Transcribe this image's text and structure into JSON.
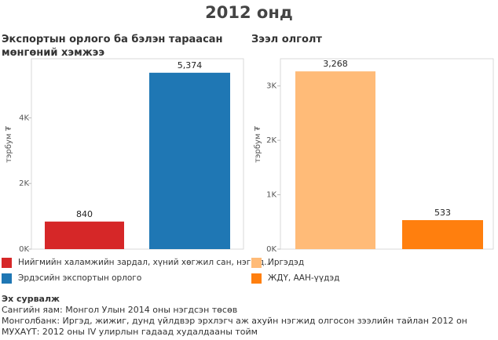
{
  "title": "2012 онд",
  "chart_data": [
    {
      "type": "bar",
      "title": "Экспортын орлого ба бэлэн тараасан мөнгөний хэмжээ",
      "ylabel": "тэрбум ₮",
      "ylim": [
        0,
        5800
      ],
      "yticks": [
        0,
        2000,
        4000
      ],
      "ytick_labels": [
        "0K",
        "2K",
        "4K"
      ],
      "categories": [
        "Нийгмийн халамжийн зардал, хүний хөгжил сан, нэг уд..",
        "Эрдэсийн экспортын орлого"
      ],
      "values": [
        840,
        5374
      ],
      "value_labels": [
        "840",
        "5,374"
      ],
      "colors": [
        "#d62728",
        "#1f77b4"
      ]
    },
    {
      "type": "bar",
      "title": "Зээл олголт",
      "ylabel": "тэрбум ₮",
      "ylim": [
        0,
        3500
      ],
      "yticks": [
        0,
        1000,
        2000,
        3000
      ],
      "ytick_labels": [
        "0K",
        "1K",
        "2K",
        "3K"
      ],
      "categories": [
        "Иргэдэд",
        "ЖДҮ, ААН-үүдэд"
      ],
      "values": [
        3268,
        533
      ],
      "value_labels": [
        "3,268",
        "533"
      ],
      "colors": [
        "#ffbb78",
        "#ff7f0e"
      ]
    }
  ],
  "legend_left": [
    {
      "label": "Нийгмийн халамжийн зардал, хүний хөгжил сан, нэг уд..",
      "color": "#d62728"
    },
    {
      "label": "Эрдэсийн экспортын орлого",
      "color": "#1f77b4"
    }
  ],
  "legend_right": [
    {
      "label": "Иргэдэд",
      "color": "#ffbb78"
    },
    {
      "label": "ЖДҮ, ААН-үүдэд",
      "color": "#ff7f0e"
    }
  ],
  "sources": {
    "title": "Эх сурвалж",
    "lines": [
      "Сангийн яам: Монгол Улын 2014 оны нэгдсэн төсөв",
      "Монголбанк: Иргэд, жижиг, дунд үйлдвэр эрхлэгч аж ахуйн нэгжид олгосон зээлийн тайлан 2012 он",
      "МУХАҮТ: 2012 оны IV улирлын гадаад худалдааны тойм"
    ]
  }
}
